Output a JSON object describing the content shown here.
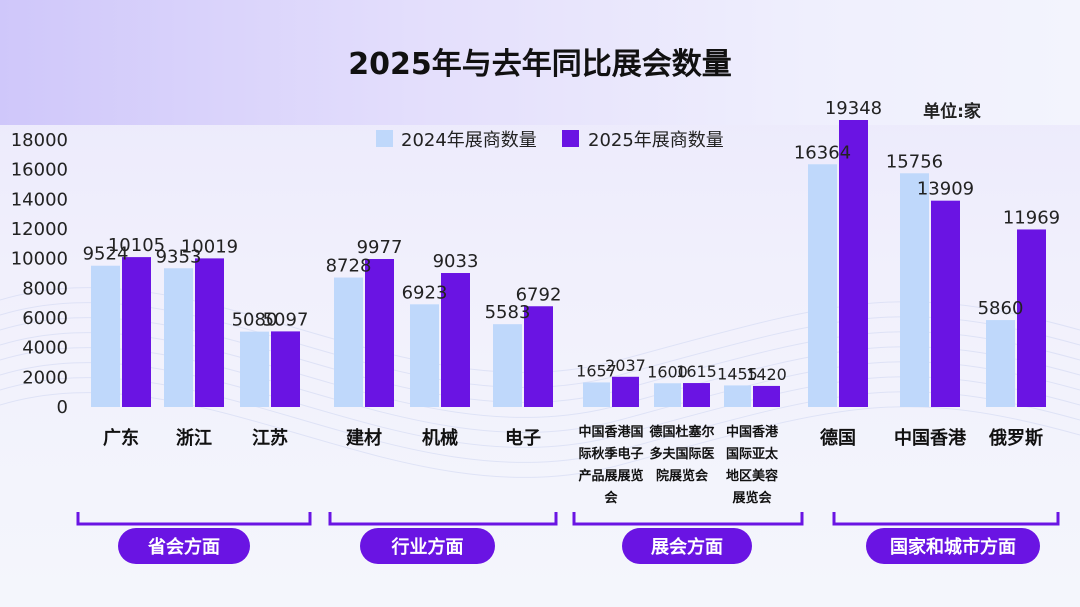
{
  "chart_data": {
    "type": "bar",
    "title": "2025年与去年同比展会数量",
    "unit_label": "单位:家",
    "ylim": [
      0,
      18000
    ],
    "yticks": [
      0,
      2000,
      4000,
      6000,
      8000,
      10000,
      12000,
      14000,
      16000,
      18000
    ],
    "grid": false,
    "legend_position": "top",
    "series": [
      {
        "name": "2024年展商数量",
        "color": "#bfd8fb"
      },
      {
        "name": "2025年展商数量",
        "color": "#6a14e3"
      }
    ],
    "groups": [
      {
        "label": "省会方面",
        "categories": [
          {
            "label": "广东",
            "values": [
              9524,
              10105
            ]
          },
          {
            "label": "浙江",
            "values": [
              9353,
              10019
            ]
          },
          {
            "label": "江苏",
            "values": [
              5080,
              5097
            ]
          }
        ]
      },
      {
        "label": "行业方面",
        "categories": [
          {
            "label": "建材",
            "values": [
              8728,
              9977
            ]
          },
          {
            "label": "机械",
            "values": [
              6923,
              9033
            ]
          },
          {
            "label": "电子",
            "values": [
              5583,
              6792
            ]
          }
        ]
      },
      {
        "label": "展会方面",
        "categories": [
          {
            "label": "中国香港国际秋季电子产品展展览会",
            "lines": [
              "中国香港国",
              "际秋季电子",
              "产品展展览",
              "会"
            ],
            "values": [
              1657,
              2037
            ]
          },
          {
            "label": "德国杜塞尔多夫国际医院展览会",
            "lines": [
              "德国杜塞尔",
              "多夫国际医",
              "院展览会"
            ],
            "values": [
              1600,
              1615
            ]
          },
          {
            "label": "中国香港国际亚太地区美容展览会",
            "lines": [
              "中国香港",
              "国际亚太",
              "地区美容",
              "展览会"
            ],
            "values": [
              1455,
              1420
            ]
          }
        ]
      },
      {
        "label": "国家和城市方面",
        "categories": [
          {
            "label": "德国",
            "values": [
              16364,
              19348
            ]
          },
          {
            "label": "中国香港",
            "values": [
              15756,
              13909
            ]
          },
          {
            "label": "俄罗斯",
            "values": [
              5860,
              11969
            ]
          }
        ]
      }
    ]
  },
  "colors": {
    "series_2024": "#bfd8fb",
    "series_2025": "#6a14e3",
    "accent": "#6a14e3"
  }
}
